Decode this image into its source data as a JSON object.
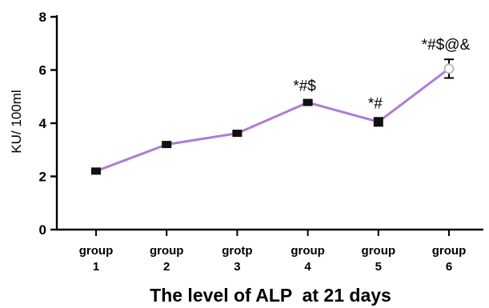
{
  "chart_data": {
    "type": "line",
    "title": "",
    "xlabel": "The level of ALP  at 21 days",
    "ylabel": "KU/ 100ml",
    "ylim": [
      0,
      8
    ],
    "yticks": [
      "0",
      "2",
      "4",
      "6",
      "8"
    ],
    "grid": false,
    "categories": [
      {
        "line1": "group",
        "line2": "1"
      },
      {
        "line1": "group",
        "line2": "2"
      },
      {
        "line1": "grotp",
        "line2": "3"
      },
      {
        "line1": "group",
        "line2": "4"
      },
      {
        "line1": "group",
        "line2": "5"
      },
      {
        "line1": "group",
        "line2": "6"
      }
    ],
    "series": [
      {
        "values": [
          2.2,
          3.2,
          3.62,
          4.78,
          4.05,
          6.05
        ],
        "errors": [
          0.1,
          0.07,
          0.08,
          0.07,
          0.15,
          0.35
        ]
      }
    ],
    "annotations": [
      "",
      "",
      "",
      "*#$",
      "*#",
      "*#$@&"
    ],
    "colors": {
      "line": "#b07ad6",
      "marker": "#111111",
      "last_marker": "#bbbbbb"
    }
  }
}
